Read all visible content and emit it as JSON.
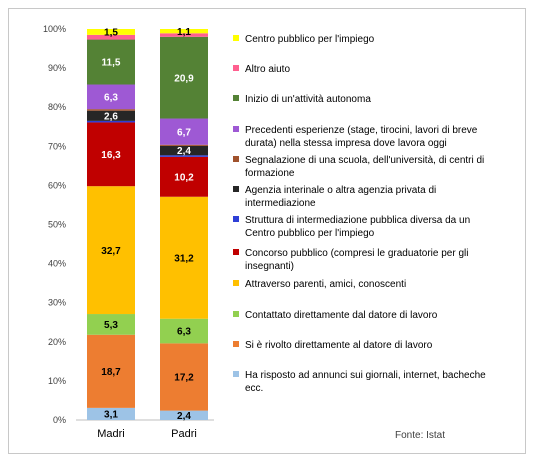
{
  "chart_data": {
    "type": "bar",
    "stacked": true,
    "percent": true,
    "categories": [
      "Madri",
      "Padri"
    ],
    "ylim": [
      0,
      100
    ],
    "yticks": [
      "0%",
      "10%",
      "20%",
      "30%",
      "40%",
      "50%",
      "60%",
      "70%",
      "80%",
      "90%",
      "100%"
    ],
    "grid": false,
    "legend_position": "right",
    "source": "Fonte: Istat",
    "series": [
      {
        "name": "Ha risposto ad annunci sui giornali, internet, bacheche ecc.",
        "lines": [
          "Ha risposto ad annunci sui giornali, internet, bacheche",
          "ecc."
        ],
        "color": "#9dc3e6",
        "labelColor": "#000000",
        "values": [
          3.1,
          2.4
        ],
        "labels": [
          "3,1",
          "2,4"
        ]
      },
      {
        "name": "Si è rivolto direttamente al datore di lavoro",
        "lines": [
          "Si è rivolto direttamente al datore di lavoro"
        ],
        "color": "#ed7d31",
        "labelColor": "#000000",
        "values": [
          18.7,
          17.2
        ],
        "labels": [
          "18,7",
          "17,2"
        ]
      },
      {
        "name": "Contattato direttamente dal datore di lavoro",
        "lines": [
          "Contattato direttamente dal datore di lavoro"
        ],
        "color": "#92d050",
        "labelColor": "#000000",
        "values": [
          5.3,
          6.3
        ],
        "labels": [
          "5,3",
          "6,3"
        ]
      },
      {
        "name": "Attraverso parenti, amici, conoscenti",
        "lines": [
          "Attraverso parenti, amici, conoscenti"
        ],
        "color": "#ffc000",
        "labelColor": "#000000",
        "values": [
          32.7,
          31.2
        ],
        "labels": [
          "32,7",
          "31,2"
        ]
      },
      {
        "name": "Concorso pubblico (compresi le graduatorie per gli insegnanti)",
        "lines": [
          "Concorso pubblico (compresi le graduatorie per gli",
          "insegnanti)"
        ],
        "color": "#c00000",
        "labelColor": "#ffffff",
        "values": [
          16.3,
          10.2
        ],
        "labels": [
          "16,3",
          "10,2"
        ]
      },
      {
        "name": "Struttura di intermediazione pubblica diversa da un Centro pubblico per l'impiego",
        "lines": [
          "Struttura di intermediazione pubblica diversa da un",
          "Centro pubblico per l'impiego"
        ],
        "color": "#2e3fd6",
        "labelColor": "#ffffff",
        "values": [
          0.4,
          0.4
        ],
        "labels": [
          "",
          ""
        ]
      },
      {
        "name": "Agenzia interinale o altra agenzia privata di intermediazione",
        "lines": [
          "Agenzia interinale o altra agenzia privata di",
          "intermediazione"
        ],
        "color": "#262626",
        "labelColor": "#ffffff",
        "values": [
          2.6,
          2.4
        ],
        "labels": [
          "2,6",
          "2,4"
        ]
      },
      {
        "name": "Segnalazione di una scuola, dell'università, di centri di formazione",
        "lines": [
          "Segnalazione di una scuola, dell'università, di centri di",
          "formazione"
        ],
        "color": "#a0522d",
        "labelColor": "#ffffff",
        "values": [
          0.4,
          0.3
        ],
        "labels": [
          "",
          ""
        ]
      },
      {
        "name": "Precedenti esperienze (stage, tirocini, lavori di breve durata) nella stessa impresa dove lavora oggi",
        "lines": [
          "Precedenti esperienze (stage, tirocini, lavori di breve",
          "durata) nella stessa impresa dove lavora oggi"
        ],
        "color": "#9e59d4",
        "labelColor": "#ffffff",
        "values": [
          6.3,
          6.7
        ],
        "labels": [
          "6,3",
          "6,7"
        ]
      },
      {
        "name": "Inizio di un'attività autonoma",
        "lines": [
          "Inizio di un'attività autonoma"
        ],
        "color": "#548235",
        "labelColor": "#ffffff",
        "values": [
          11.5,
          20.9
        ],
        "labels": [
          "11,5",
          "20,9"
        ]
      },
      {
        "name": "Altro aiuto",
        "lines": [
          "Altro aiuto"
        ],
        "color": "#ff5f8f",
        "labelColor": "#ffffff",
        "values": [
          1.2,
          0.9
        ],
        "labels": [
          "",
          ""
        ]
      },
      {
        "name": "Centro pubblico per l'impiego",
        "lines": [
          "Centro pubblico per l'impiego"
        ],
        "color": "#ffff00",
        "labelColor": "#000000",
        "values": [
          1.5,
          1.1
        ],
        "labels": [
          "1,5",
          "1,1"
        ]
      }
    ]
  }
}
